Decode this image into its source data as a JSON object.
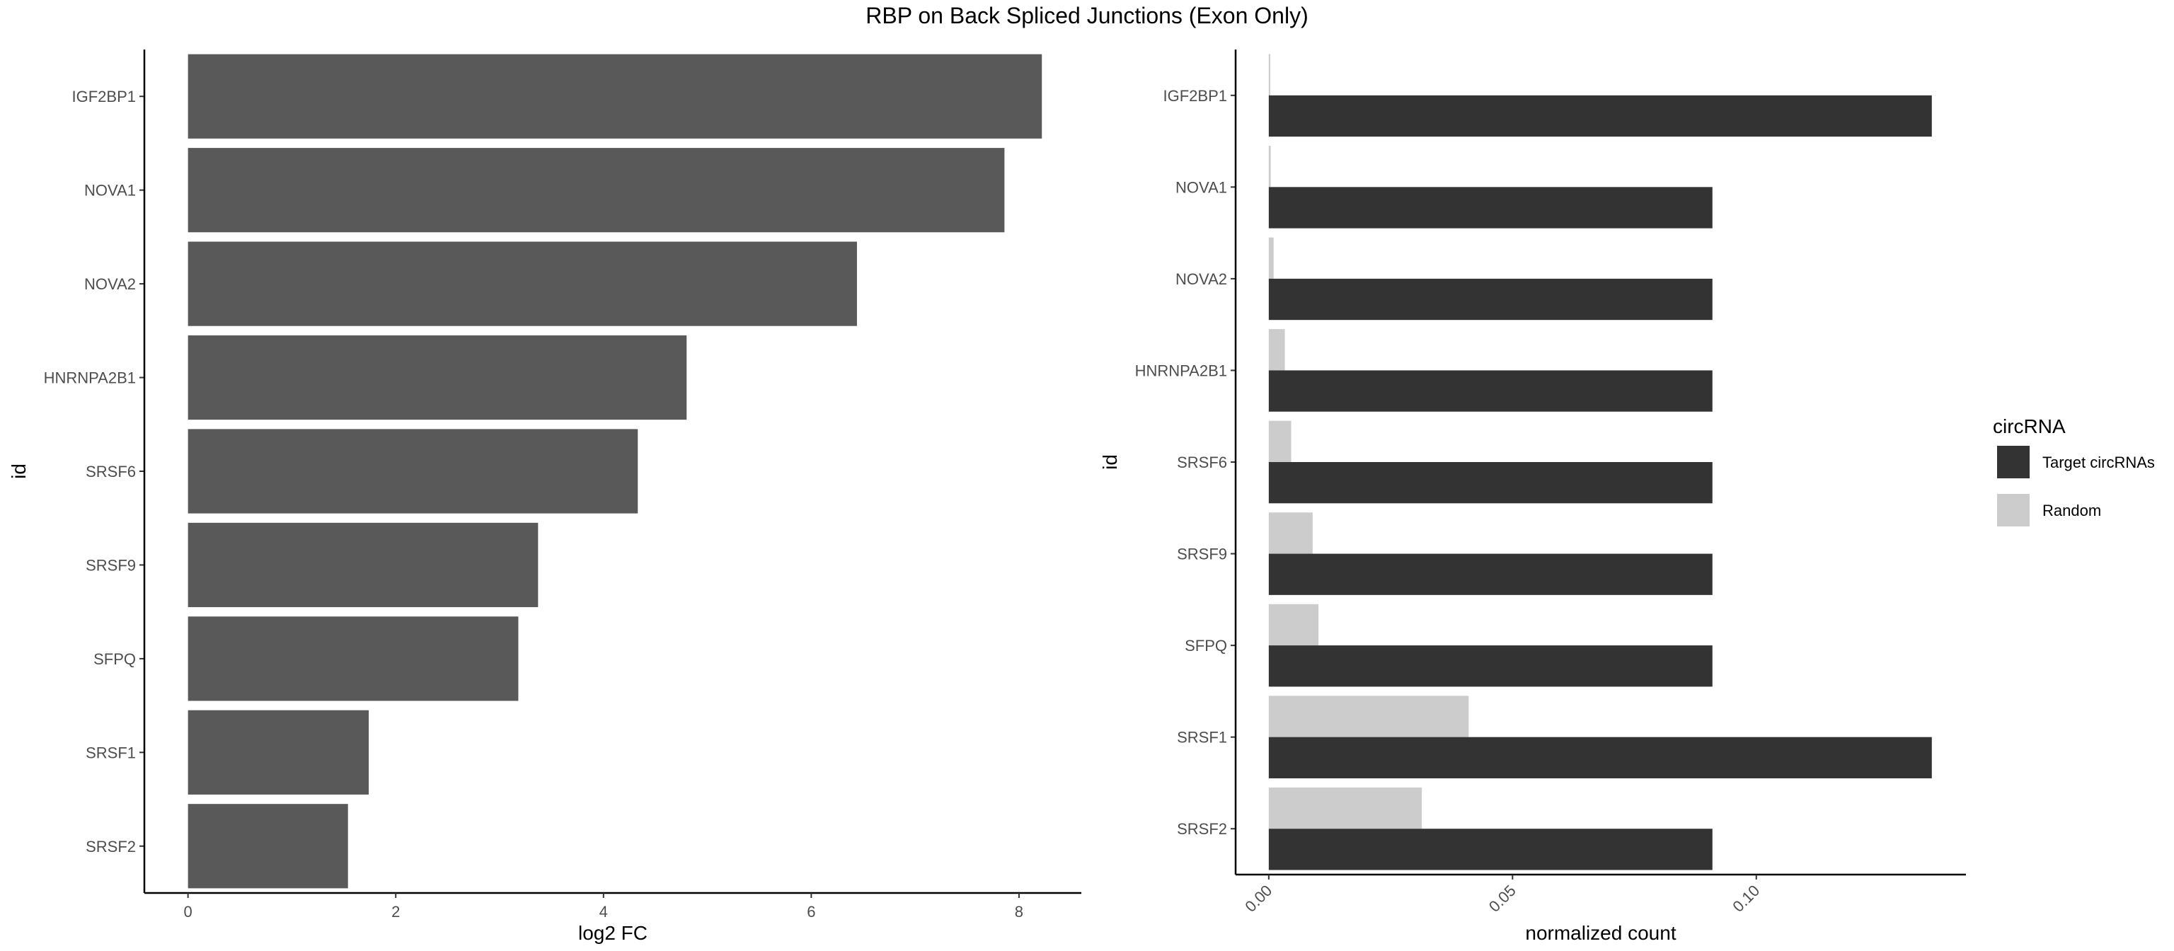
{
  "title": "RBP on Back Spliced Junctions (Exon Only)",
  "chart_data": [
    {
      "type": "bar",
      "orientation": "horizontal",
      "categories": [
        "IGF2BP1",
        "NOVA1",
        "NOVA2",
        "HNRNPA2B1",
        "SRSF6",
        "SRSF9",
        "SFPQ",
        "SRSF1",
        "SRSF2"
      ],
      "values": [
        8.22,
        7.86,
        6.44,
        4.8,
        4.33,
        3.37,
        3.18,
        1.74,
        1.54
      ],
      "xlabel": "log2 FC",
      "ylabel": "id",
      "xlim": [
        -0.42,
        8.6
      ],
      "xticks": [
        0,
        2,
        4,
        6,
        8
      ],
      "xtick_labels": [
        "0",
        "2",
        "4",
        "6",
        "8"
      ],
      "bar_color": "#595959",
      "grid": false
    },
    {
      "type": "bar",
      "orientation": "horizontal",
      "grouped": true,
      "categories": [
        "IGF2BP1",
        "NOVA1",
        "NOVA2",
        "HNRNPA2B1",
        "SRSF6",
        "SRSF9",
        "SFPQ",
        "SRSF1",
        "SRSF2"
      ],
      "series": [
        {
          "name": "Target circRNAs",
          "color": "#333333",
          "values": [
            0.136,
            0.091,
            0.091,
            0.091,
            0.091,
            0.091,
            0.091,
            0.136,
            0.091
          ]
        },
        {
          "name": "Random",
          "color": "#cccccc",
          "values": [
            0.0003,
            0.0004,
            0.001,
            0.0033,
            0.0046,
            0.009,
            0.0102,
            0.041,
            0.0314
          ]
        }
      ],
      "xlabel": "normalized count",
      "ylabel": "id",
      "xlim": [
        -0.0068,
        0.143
      ],
      "xticks": [
        0,
        0.05,
        0.1
      ],
      "xtick_labels": [
        "0.00",
        "0.05",
        "0.10"
      ],
      "legend": {
        "title": "circRNA",
        "position": "right"
      },
      "grid": false
    }
  ]
}
